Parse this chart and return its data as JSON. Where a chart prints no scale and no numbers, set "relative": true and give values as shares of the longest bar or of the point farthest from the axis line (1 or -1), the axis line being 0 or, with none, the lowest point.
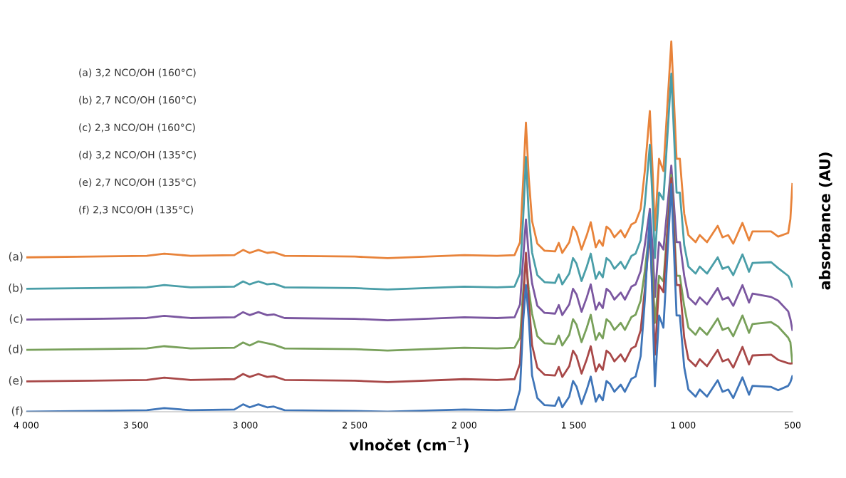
{
  "chart_data": {
    "type": "line",
    "relative": true,
    "xlabel": "vlnočet (cm$^{−1}$)",
    "ylabel": "absorbance (AU)",
    "xlim": [
      4000,
      500
    ],
    "xticks": [
      {
        "value": 4000,
        "label": "4 000"
      },
      {
        "value": 3500,
        "label": "3 500"
      },
      {
        "value": 3000,
        "label": "3 000"
      },
      {
        "value": 2500,
        "label": "2 500"
      },
      {
        "value": 2000,
        "label": "2 000"
      },
      {
        "value": 1500,
        "label": "1 500"
      },
      {
        "value": 1000,
        "label": "1 000"
      },
      500
    ],
    "grid": false,
    "marker": "none",
    "line_style": "solid",
    "annotations": [
      "(a) 3,2 NCO/OH (160°C)",
      "(b) 2,7 NCO/OH (160°C)",
      "(c) 2,3 NCO/OH (160°C)",
      "(d) 3,2 NCO/OH (135°C)",
      "(e) 2,7 NCO/OH (135°C)",
      "(f) 2,3 NCO/OH (135°C)"
    ],
    "x": [
      4000,
      3700,
      3450,
      3370,
      3250,
      3050,
      3010,
      2980,
      2940,
      2900,
      2870,
      2820,
      2500,
      2350,
      2000,
      1850,
      1770,
      1745,
      1730,
      1718,
      1705,
      1690,
      1666,
      1633,
      1585,
      1568,
      1552,
      1520,
      1503,
      1487,
      1464,
      1440,
      1422,
      1399,
      1383,
      1367,
      1350,
      1334,
      1314,
      1285,
      1266,
      1236,
      1217,
      1194,
      1175,
      1152,
      1138,
      1129,
      1110,
      1090,
      1054,
      1030,
      1015,
      995,
      976,
      943,
      924,
      891,
      842,
      820,
      794,
      771,
      729,
      699,
      683,
      598,
      566,
      520,
      510,
      501
    ],
    "series": [
      {
        "name": "(a)",
        "color": "#e8833a",
        "values": [
          0.417,
          0.419,
          0.421,
          0.427,
          0.421,
          0.423,
          0.437,
          0.429,
          0.437,
          0.429,
          0.431,
          0.421,
          0.419,
          0.415,
          0.423,
          0.421,
          0.423,
          0.458,
          0.631,
          0.781,
          0.631,
          0.515,
          0.454,
          0.435,
          0.433,
          0.456,
          0.429,
          0.458,
          0.5,
          0.485,
          0.438,
          0.477,
          0.512,
          0.444,
          0.463,
          0.448,
          0.5,
          0.492,
          0.471,
          0.49,
          0.471,
          0.506,
          0.512,
          0.548,
          0.65,
          0.812,
          0.631,
          0.49,
          0.683,
          0.65,
          1.0,
          0.683,
          0.683,
          0.535,
          0.477,
          0.458,
          0.477,
          0.458,
          0.502,
          0.471,
          0.477,
          0.454,
          0.51,
          0.463,
          0.487,
          0.487,
          0.473,
          0.483,
          0.521,
          0.615
        ]
      },
      {
        "name": "(b)",
        "color": "#4a9ea8",
        "values": [
          0.332,
          0.334,
          0.336,
          0.342,
          0.336,
          0.338,
          0.352,
          0.344,
          0.352,
          0.344,
          0.346,
          0.336,
          0.334,
          0.33,
          0.338,
          0.336,
          0.338,
          0.373,
          0.53,
          0.688,
          0.53,
          0.43,
          0.369,
          0.35,
          0.348,
          0.371,
          0.344,
          0.373,
          0.415,
          0.4,
          0.353,
          0.392,
          0.427,
          0.359,
          0.378,
          0.363,
          0.415,
          0.407,
          0.386,
          0.405,
          0.386,
          0.421,
          0.427,
          0.463,
          0.56,
          0.721,
          0.55,
          0.415,
          0.592,
          0.573,
          0.913,
          0.592,
          0.592,
          0.45,
          0.392,
          0.373,
          0.392,
          0.373,
          0.417,
          0.386,
          0.392,
          0.369,
          0.425,
          0.378,
          0.402,
          0.404,
          0.388,
          0.367,
          0.355,
          0.338
        ]
      },
      {
        "name": "(c)",
        "color": "#7b57a0",
        "values": [
          0.249,
          0.251,
          0.253,
          0.259,
          0.253,
          0.255,
          0.269,
          0.261,
          0.269,
          0.261,
          0.263,
          0.253,
          0.251,
          0.247,
          0.255,
          0.253,
          0.255,
          0.29,
          0.42,
          0.519,
          0.42,
          0.347,
          0.286,
          0.267,
          0.265,
          0.288,
          0.261,
          0.29,
          0.332,
          0.317,
          0.27,
          0.309,
          0.344,
          0.276,
          0.295,
          0.28,
          0.332,
          0.324,
          0.303,
          0.322,
          0.303,
          0.338,
          0.344,
          0.38,
          0.45,
          0.548,
          0.43,
          0.31,
          0.458,
          0.438,
          0.665,
          0.458,
          0.458,
          0.367,
          0.309,
          0.29,
          0.309,
          0.29,
          0.334,
          0.303,
          0.309,
          0.286,
          0.342,
          0.295,
          0.319,
          0.31,
          0.3,
          0.271,
          0.25,
          0.221
        ]
      },
      {
        "name": "(d)",
        "color": "#78a05a",
        "values": [
          0.167,
          0.169,
          0.171,
          0.177,
          0.171,
          0.173,
          0.187,
          0.179,
          0.19,
          0.185,
          0.181,
          0.171,
          0.169,
          0.165,
          0.173,
          0.171,
          0.173,
          0.2,
          0.33,
          0.41,
          0.33,
          0.265,
          0.204,
          0.185,
          0.183,
          0.206,
          0.179,
          0.208,
          0.25,
          0.235,
          0.188,
          0.227,
          0.262,
          0.194,
          0.213,
          0.198,
          0.25,
          0.242,
          0.221,
          0.24,
          0.221,
          0.256,
          0.262,
          0.3,
          0.38,
          0.5,
          0.36,
          0.24,
          0.367,
          0.352,
          0.64,
          0.367,
          0.367,
          0.285,
          0.227,
          0.208,
          0.227,
          0.208,
          0.252,
          0.221,
          0.227,
          0.204,
          0.26,
          0.213,
          0.237,
          0.242,
          0.23,
          0.2,
          0.188,
          0.131
        ]
      },
      {
        "name": "(e)",
        "color": "#a84848",
        "values": [
          0.082,
          0.084,
          0.086,
          0.092,
          0.086,
          0.088,
          0.102,
          0.094,
          0.102,
          0.094,
          0.096,
          0.086,
          0.084,
          0.08,
          0.088,
          0.086,
          0.088,
          0.13,
          0.3,
          0.429,
          0.3,
          0.18,
          0.119,
          0.1,
          0.098,
          0.121,
          0.094,
          0.123,
          0.165,
          0.15,
          0.103,
          0.142,
          0.177,
          0.109,
          0.128,
          0.113,
          0.165,
          0.157,
          0.136,
          0.155,
          0.136,
          0.171,
          0.177,
          0.22,
          0.33,
          0.487,
          0.3,
          0.154,
          0.342,
          0.323,
          0.631,
          0.342,
          0.342,
          0.2,
          0.142,
          0.123,
          0.142,
          0.123,
          0.167,
          0.136,
          0.142,
          0.119,
          0.175,
          0.128,
          0.152,
          0.154,
          0.14,
          0.131,
          0.13,
          0.131
        ]
      },
      {
        "name": "(f)",
        "color": "#3f75b8",
        "values": [
          0.0,
          0.002,
          0.004,
          0.01,
          0.004,
          0.006,
          0.02,
          0.012,
          0.02,
          0.012,
          0.014,
          0.004,
          0.002,
          0.0,
          0.006,
          0.004,
          0.006,
          0.06,
          0.25,
          0.342,
          0.25,
          0.098,
          0.037,
          0.018,
          0.016,
          0.039,
          0.012,
          0.041,
          0.083,
          0.068,
          0.021,
          0.06,
          0.095,
          0.027,
          0.046,
          0.031,
          0.083,
          0.075,
          0.054,
          0.073,
          0.054,
          0.089,
          0.095,
          0.15,
          0.3,
          0.535,
          0.25,
          0.069,
          0.26,
          0.227,
          0.615,
          0.26,
          0.26,
          0.12,
          0.06,
          0.041,
          0.06,
          0.041,
          0.085,
          0.054,
          0.06,
          0.037,
          0.093,
          0.046,
          0.07,
          0.067,
          0.058,
          0.07,
          0.08,
          0.096
        ]
      }
    ]
  }
}
